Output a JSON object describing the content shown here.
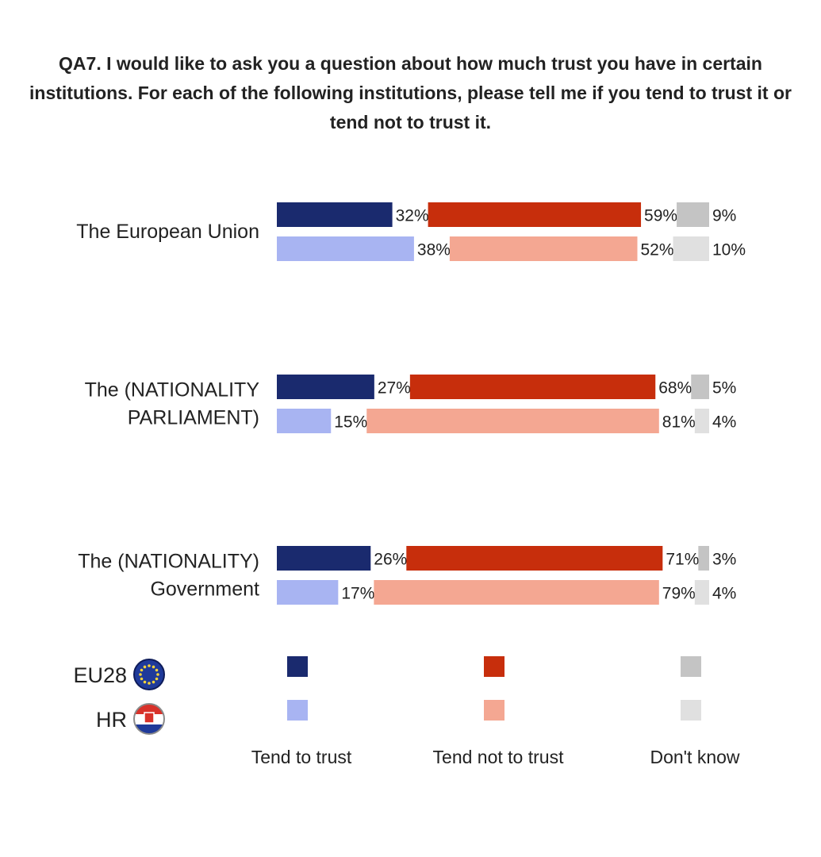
{
  "title": "QA7. I would like to ask you a question about how much trust you have in certain institutions. For each of the following institutions, please tell me if you tend to trust it or tend not to trust it.",
  "chart_data": {
    "type": "bar",
    "title": "QA7. I would like to ask you a question about how much trust you have in certain institutions. For each of the following institutions, please tell me if you tend to trust it or tend not to trust it.",
    "categories": [
      [
        "The European Union"
      ],
      [
        "The (NATIONALITY",
        "PARLIAMENT)"
      ],
      [
        "The (NATIONALITY)",
        "Government"
      ]
    ],
    "respondents": [
      "EU28",
      "HR"
    ],
    "series": [
      {
        "name": "Tend to trust",
        "colors": [
          "#1a2a6e",
          "#a8b4f2"
        ],
        "values": {
          "EU28": [
            32,
            27,
            26
          ],
          "HR": [
            38,
            15,
            17
          ]
        }
      },
      {
        "name": "Tend not to trust",
        "colors": [
          "#c72e0c",
          "#f4a792"
        ],
        "values": {
          "EU28": [
            59,
            68,
            71
          ],
          "HR": [
            52,
            81,
            79
          ]
        }
      },
      {
        "name": "Don't know",
        "colors": [
          "#c4c4c4",
          "#e0e0e0"
        ],
        "values": {
          "EU28": [
            9,
            5,
            3
          ],
          "HR": [
            10,
            4,
            4
          ]
        }
      }
    ],
    "value_suffix": "%",
    "legend_position": "bottom"
  },
  "colors": {
    "text": "#222222",
    "eu_flag": "#1f3a9a",
    "hr_flag_red": "#d8322a",
    "hr_flag_white": "#ffffff"
  }
}
